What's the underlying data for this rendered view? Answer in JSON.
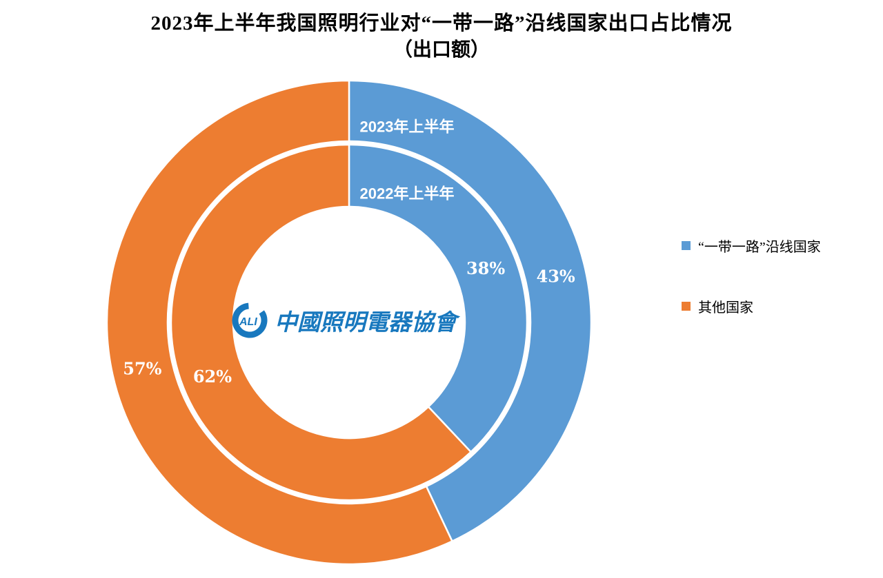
{
  "page": {
    "background": "#FFFFFF"
  },
  "title": {
    "line1": "2023年上半年我国照明行业对“一带一路”沿线国家出口占比情况",
    "line2": "（出口额）"
  },
  "legend": {
    "position": "right",
    "items": [
      {
        "label": "“一带一路”沿线国家",
        "color": "#5B9BD5"
      },
      {
        "label": "其他国家",
        "color": "#ED7D31"
      }
    ]
  },
  "watermark": {
    "logo_text": "ALI",
    "org_text": "中國照明電器協會",
    "color": "#1878BE"
  },
  "chart_data": {
    "type": "pie",
    "subtype": "double-doughnut",
    "title": "2023年上半年我国照明行业对“一带一路”沿线国家出口占比情况（出口额）",
    "categories": [
      "“一带一路”沿线国家",
      "其他国家"
    ],
    "colors": [
      "#5B9BD5",
      "#ED7D31"
    ],
    "start_angle_deg": 0,
    "direction": "clockwise",
    "grid": false,
    "legend_position": "right",
    "series": [
      {
        "name": "2023年上半年",
        "ring": "outer",
        "values": [
          43,
          57
        ],
        "labels": [
          "43%",
          "57%"
        ]
      },
      {
        "name": "2022年上半年",
        "ring": "inner",
        "values": [
          38,
          62
        ],
        "labels": [
          "38%",
          "62%"
        ]
      }
    ],
    "segment_border_color": "#FFFFFF"
  }
}
